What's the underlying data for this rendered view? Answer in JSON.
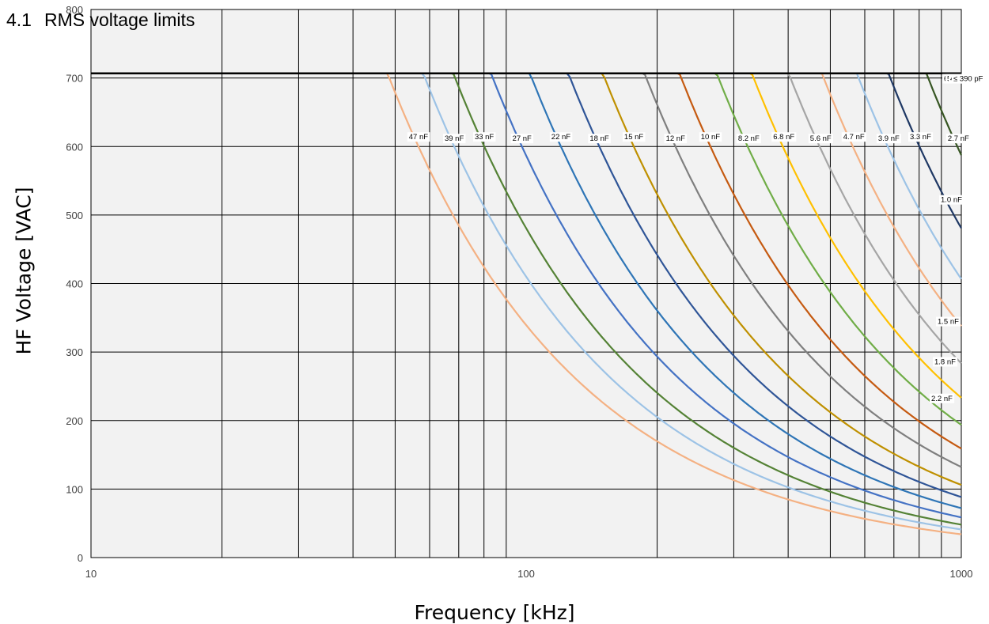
{
  "section": {
    "number": "4.1",
    "title": "RMS voltage limits"
  },
  "chart_data": {
    "type": "line",
    "xlabel": "Frequency [kHz]",
    "ylabel": "HF Voltage [VAC]",
    "x_scale": "log",
    "xlim": [
      10,
      1000
    ],
    "ylim": [
      0,
      800
    ],
    "x_ticks": [
      "10",
      "100",
      "1000"
    ],
    "y_ticks": [
      "0",
      "100",
      "200",
      "300",
      "400",
      "500",
      "600",
      "700",
      "800"
    ],
    "grid": true,
    "plateau_voltage": 707,
    "series": [
      {
        "name": "47 nF",
        "color": "#f4b183",
        "knee_khz": 48
      },
      {
        "name": "39 nF",
        "color": "#9dc3e6",
        "knee_khz": 58
      },
      {
        "name": "33 nF",
        "color": "#548235",
        "knee_khz": 68
      },
      {
        "name": "27 nF",
        "color": "#4472c4",
        "knee_khz": 83
      },
      {
        "name": "22 nF",
        "color": "#2e75b6",
        "knee_khz": 102
      },
      {
        "name": "18 nF",
        "color": "#2f5597",
        "knee_khz": 125
      },
      {
        "name": "15 nF",
        "color": "#bf9000",
        "knee_khz": 150
      },
      {
        "name": "12 nF",
        "color": "#7f7f7f",
        "knee_khz": 187
      },
      {
        "name": "10 nF",
        "color": "#c55a11",
        "knee_khz": 225
      },
      {
        "name": "8.2 nF",
        "color": "#70ad47",
        "knee_khz": 274
      },
      {
        "name": "6.8 nF",
        "color": "#ffc000",
        "knee_khz": 330
      },
      {
        "name": "5.6 nF",
        "color": "#a5a5a5",
        "knee_khz": 401
      },
      {
        "name": "4.7 nF",
        "color": "#f4b183",
        "knee_khz": 478
      },
      {
        "name": "3.9 nF",
        "color": "#9dc3e6",
        "knee_khz": 575
      },
      {
        "name": "3.3 nF",
        "color": "#1f3864",
        "knee_khz": 680
      },
      {
        "name": "2.7 nF",
        "color": "#375623",
        "knee_khz": 831
      },
      {
        "name": "2.2 nF",
        "color": "#bf9000",
        "knee_khz": 1020
      },
      {
        "name": "1.8 nF",
        "color": "#808080",
        "knee_khz": 1247
      },
      {
        "name": "1.5 nF",
        "color": "#843c0c",
        "knee_khz": 1496
      },
      {
        "name": "1.0 nF",
        "color": "#70ad47",
        "knee_khz": 2250
      },
      {
        "name": "680 pF",
        "color": "#000000",
        "knee_khz": 3300
      },
      {
        "name": "560 pF",
        "color": "#000000",
        "knee_khz": 4000
      },
      {
        "name": "470 pF",
        "color": "#000000",
        "knee_khz": 4770
      },
      {
        "name": "≤ 390 pF",
        "color": "#000000",
        "knee_khz": 5750
      }
    ]
  },
  "colors": {
    "plot_background": "#f2f2f2",
    "grid": "#000000"
  }
}
